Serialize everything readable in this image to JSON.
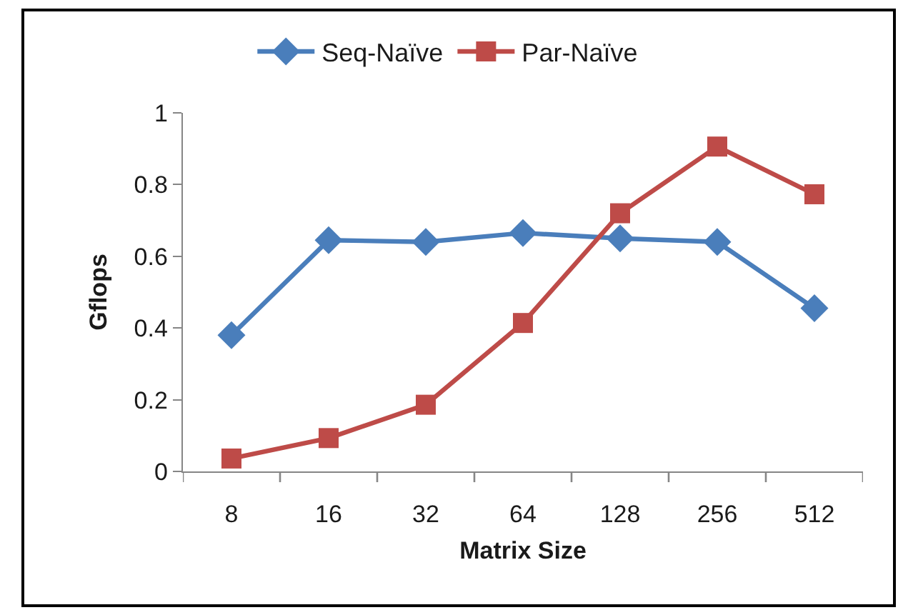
{
  "chart_data": {
    "type": "line",
    "xlabel": "Matrix Size",
    "ylabel": "Gflops",
    "categories": [
      "8",
      "16",
      "32",
      "64",
      "128",
      "256",
      "512"
    ],
    "series": [
      {
        "name": "Seq-Naïve",
        "color": "#4a7ebb",
        "marker": "diamond",
        "values": [
          0.38,
          0.645,
          0.64,
          0.665,
          0.65,
          0.64,
          0.455
        ]
      },
      {
        "name": "Par-Naïve",
        "color": "#be4b48",
        "marker": "square",
        "values": [
          0.036,
          0.093,
          0.186,
          0.414,
          0.72,
          0.906,
          0.773
        ]
      }
    ],
    "ylim": [
      0,
      1
    ],
    "yticks": [
      {
        "value": 0,
        "label": "0"
      },
      0.2,
      0.4,
      0.6,
      0.8,
      {
        "value": 1,
        "label": "1"
      }
    ],
    "grid": false,
    "legend": "top",
    "line_style": "solid"
  }
}
